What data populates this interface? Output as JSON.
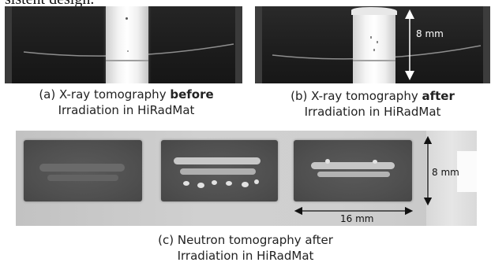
{
  "top_cut_text": "sistent design.",
  "panel_a": {
    "caption_prefix": "(a) X-ray tomography ",
    "caption_bold": "before",
    "caption_line2": "Irradiation in HiRadMat"
  },
  "panel_b": {
    "scale_label": "8 mm",
    "caption_prefix": "(b) X-ray tomography ",
    "caption_bold": "after",
    "caption_line2": "Irradiation in HiRadMat"
  },
  "panel_c": {
    "vertical_scale_label": "8 mm",
    "horizontal_scale_label": "16 mm",
    "caption_line1": "(c) Neutron tomography after",
    "caption_line2": "Irradiation in HiRadMat"
  },
  "colors": {
    "xray_background": "#1c1c1c",
    "sample_bright": "#ffffff",
    "neutron_background": "#cdcdcd",
    "neutron_block": "#505050"
  }
}
